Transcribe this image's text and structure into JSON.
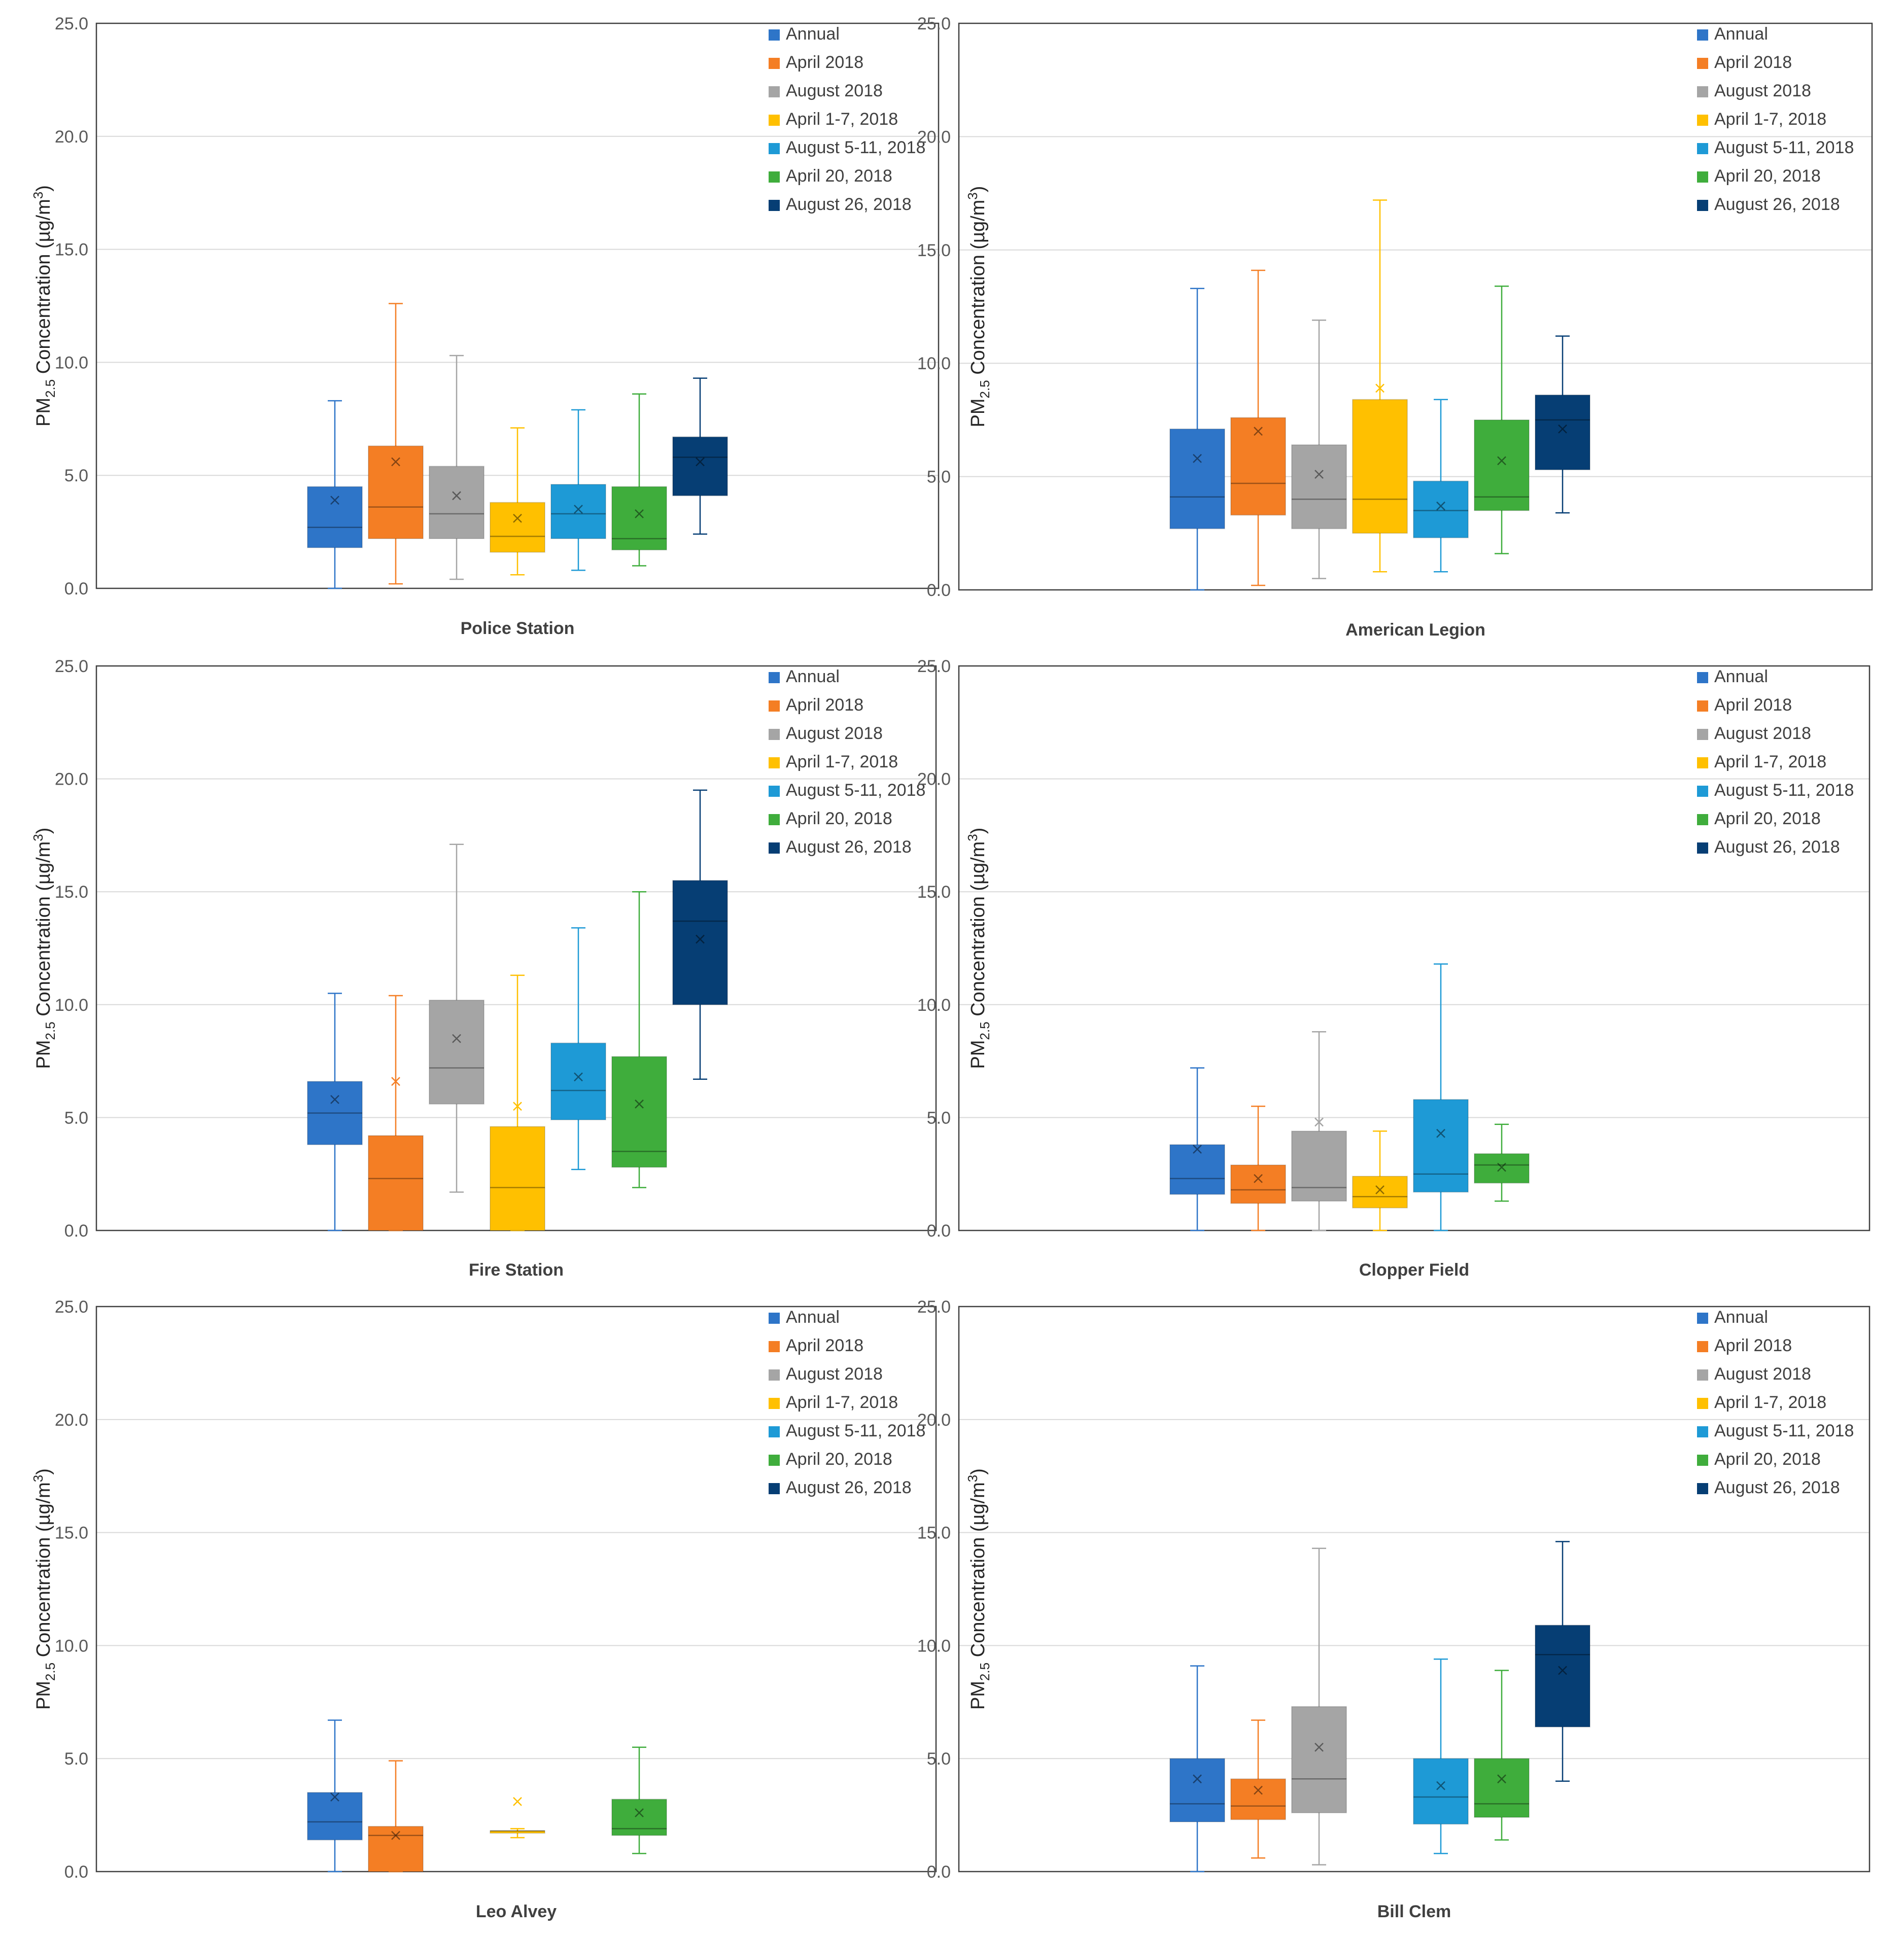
{
  "series_styles": [
    {
      "name": "Annual",
      "color": "#2E75C8"
    },
    {
      "name": "April 2018",
      "color": "#F47E24"
    },
    {
      "name": "August 2018",
      "color": "#A5A5A5"
    },
    {
      "name": "April 1-7, 2018",
      "color": "#FFC000"
    },
    {
      "name": "August 5-11, 2018",
      "color": "#1E9AD6"
    },
    {
      "name": "April 20, 2018",
      "color": "#3FAD3C"
    },
    {
      "name": "August 26, 2018",
      "color": "#063E74"
    }
  ],
  "chart_data": [
    {
      "type": "boxplot",
      "title": "Police Station",
      "ylabel": "PM2.5 Concentration (µg/m3)",
      "ylabel_parts": {
        "pre": "PM",
        "sub": "2.5",
        "mid": " Concentration (µg/m",
        "sup": "3",
        "post": ")"
      },
      "ylim": [
        0,
        25
      ],
      "yticks": [
        "0.0",
        "5.0",
        "10.0",
        "15.0",
        "20.0",
        "25.0"
      ],
      "legend": [
        "Annual",
        "April 2018",
        "August 2018",
        "April 1-7, 2018",
        "August 5-11, 2018",
        "April 20, 2018",
        "August 26, 2018"
      ],
      "series": [
        {
          "name": "Annual",
          "min": 0.0,
          "q1": 1.8,
          "median": 2.7,
          "q3": 4.5,
          "max": 8.3,
          "mean": 3.9
        },
        {
          "name": "April 2018",
          "min": 0.2,
          "q1": 2.2,
          "median": 3.6,
          "q3": 6.3,
          "max": 12.6,
          "mean": 5.6
        },
        {
          "name": "August 2018",
          "min": 0.4,
          "q1": 2.2,
          "median": 3.3,
          "q3": 5.4,
          "max": 10.3,
          "mean": 4.1
        },
        {
          "name": "April 1-7, 2018",
          "min": 0.6,
          "q1": 1.6,
          "median": 2.3,
          "q3": 3.8,
          "max": 7.1,
          "mean": 3.1
        },
        {
          "name": "August 5-11, 2018",
          "min": 0.8,
          "q1": 2.2,
          "median": 3.3,
          "q3": 4.6,
          "max": 7.9,
          "mean": 3.5
        },
        {
          "name": "April 20, 2018",
          "min": 1.0,
          "q1": 1.7,
          "median": 2.2,
          "q3": 4.5,
          "max": 8.6,
          "mean": 3.3
        },
        {
          "name": "August 26, 2018",
          "min": 2.4,
          "q1": 4.1,
          "median": 5.8,
          "q3": 6.7,
          "max": 9.3,
          "mean": 5.6
        }
      ]
    },
    {
      "type": "boxplot",
      "title": "American Legion",
      "ylabel": "PM2.5 Concentration (µg/m3)",
      "ylabel_parts": {
        "pre": "PM",
        "sub": "2.5",
        "mid": " Concentration (µg/m",
        "sup": "3",
        "post": ")"
      },
      "ylim": [
        0,
        25
      ],
      "yticks": [
        "0.0",
        "5.0",
        "10.0",
        "15.0",
        "20.0",
        "25.0"
      ],
      "legend": [
        "Annual",
        "April 2018",
        "August 2018",
        "April 1-7, 2018",
        "August 5-11, 2018",
        "April 20, 2018",
        "August 26, 2018"
      ],
      "series": [
        {
          "name": "Annual",
          "min": 0.0,
          "q1": 2.7,
          "median": 4.1,
          "q3": 7.1,
          "max": 13.3,
          "mean": 5.8
        },
        {
          "name": "April 2018",
          "min": 0.2,
          "q1": 3.3,
          "median": 4.7,
          "q3": 7.6,
          "max": 14.1,
          "mean": 7.0
        },
        {
          "name": "August 2018",
          "min": 0.5,
          "q1": 2.7,
          "median": 4.0,
          "q3": 6.4,
          "max": 11.9,
          "mean": 5.1
        },
        {
          "name": "April 1-7, 2018",
          "min": 0.8,
          "q1": 2.5,
          "median": 4.0,
          "q3": 8.4,
          "max": 17.2,
          "mean": 8.9
        },
        {
          "name": "August 5-11, 2018",
          "min": 0.8,
          "q1": 2.3,
          "median": 3.5,
          "q3": 4.8,
          "max": 8.4,
          "mean": 3.7
        },
        {
          "name": "April 20, 2018",
          "min": 1.6,
          "q1": 3.5,
          "median": 4.1,
          "q3": 7.5,
          "max": 13.4,
          "mean": 5.7
        },
        {
          "name": "August 26, 2018",
          "min": 3.4,
          "q1": 5.3,
          "median": 7.5,
          "q3": 8.6,
          "max": 11.2,
          "mean": 7.1
        }
      ]
    },
    {
      "type": "boxplot",
      "title": "Fire Station",
      "ylabel": "PM2.5 Concentration (µg/m3)",
      "ylabel_parts": {
        "pre": "PM",
        "sub": "2.5",
        "mid": " Concentration (µg/m",
        "sup": "3",
        "post": ")"
      },
      "ylim": [
        0,
        25
      ],
      "yticks": [
        "0.0",
        "5.0",
        "10.0",
        "15.0",
        "20.0",
        "25.0"
      ],
      "legend": [
        "Annual",
        "April 2018",
        "August 2018",
        "April 1-7, 2018",
        "August 5-11, 2018",
        "April 20, 2018",
        "August 26, 2018"
      ],
      "series": [
        {
          "name": "Annual",
          "min": 0.0,
          "q1": 3.8,
          "median": 5.2,
          "q3": 6.6,
          "max": 10.5,
          "mean": 5.8
        },
        {
          "name": "April 2018",
          "min": 0.0,
          "q1": 0.0,
          "median": 2.3,
          "q3": 4.2,
          "max": 10.4,
          "mean": 6.6
        },
        {
          "name": "August 2018",
          "min": 1.7,
          "q1": 5.6,
          "median": 7.2,
          "q3": 10.2,
          "max": 17.1,
          "mean": 8.5
        },
        {
          "name": "April 1-7, 2018",
          "min": 0.0,
          "q1": 0.0,
          "median": 1.9,
          "q3": 4.6,
          "max": 11.3,
          "mean": 5.5
        },
        {
          "name": "August 5-11, 2018",
          "min": 2.7,
          "q1": 4.9,
          "median": 6.2,
          "q3": 8.3,
          "max": 13.4,
          "mean": 6.8
        },
        {
          "name": "April 20, 2018",
          "min": 1.9,
          "q1": 2.8,
          "median": 3.5,
          "q3": 7.7,
          "max": 15.0,
          "mean": 5.6
        },
        {
          "name": "August 26, 2018",
          "min": 6.7,
          "q1": 10.0,
          "median": 13.7,
          "q3": 15.5,
          "max": 19.5,
          "mean": 12.9
        }
      ]
    },
    {
      "type": "boxplot",
      "title": "Clopper Field",
      "ylabel": "PM2.5 Concentration (µg/m3)",
      "ylabel_parts": {
        "pre": "PM",
        "sub": "2.5",
        "mid": " Concentration (µg/m",
        "sup": "3",
        "post": ")"
      },
      "ylim": [
        0,
        25
      ],
      "yticks": [
        "0.0",
        "5.0",
        "10.0",
        "15.0",
        "20.0",
        "25.0"
      ],
      "legend": [
        "Annual",
        "April 2018",
        "August 2018",
        "April 1-7, 2018",
        "August 5-11, 2018",
        "April 20, 2018",
        "August 26, 2018"
      ],
      "series": [
        {
          "name": "Annual",
          "min": 0.0,
          "q1": 1.6,
          "median": 2.3,
          "q3": 3.8,
          "max": 7.2,
          "mean": 3.6
        },
        {
          "name": "April 2018",
          "min": 0.0,
          "q1": 1.2,
          "median": 1.8,
          "q3": 2.9,
          "max": 5.5,
          "mean": 2.3
        },
        {
          "name": "August 2018",
          "min": 0.0,
          "q1": 1.3,
          "median": 1.9,
          "q3": 4.4,
          "max": 8.8,
          "mean": 4.8
        },
        {
          "name": "April 1-7, 2018",
          "min": 0.0,
          "q1": 1.0,
          "median": 1.5,
          "q3": 2.4,
          "max": 4.4,
          "mean": 1.8
        },
        {
          "name": "August 5-11, 2018",
          "min": 0.0,
          "q1": 1.7,
          "median": 2.5,
          "q3": 5.8,
          "max": 11.8,
          "mean": 4.3
        },
        {
          "name": "April 20, 2018",
          "min": 1.3,
          "q1": 2.1,
          "median": 2.9,
          "q3": 3.4,
          "max": 4.7,
          "mean": 2.8
        }
      ]
    },
    {
      "type": "boxplot",
      "title": "Leo Alvey",
      "ylabel": "PM2.5 Concentration (µg/m3)",
      "ylabel_parts": {
        "pre": "PM",
        "sub": "2.5",
        "mid": " Concentration (µg/m",
        "sup": "3",
        "post": ")"
      },
      "ylim": [
        0,
        25
      ],
      "yticks": [
        "0.0",
        "5.0",
        "10.0",
        "15.0",
        "20.0",
        "25.0"
      ],
      "legend": [
        "Annual",
        "April 2018",
        "August 2018",
        "April 1-7, 2018",
        "August 5-11, 2018",
        "April 20, 2018",
        "August 26, 2018"
      ],
      "series": [
        {
          "name": "Annual",
          "min": 0.0,
          "q1": 1.4,
          "median": 2.2,
          "q3": 3.5,
          "max": 6.7,
          "mean": 3.3
        },
        {
          "name": "April 2018",
          "min": 0.0,
          "q1": 0.0,
          "median": 1.6,
          "q3": 2.0,
          "max": 4.9,
          "mean": 1.6
        },
        {
          "name": "April 1-7, 2018",
          "min": 1.5,
          "q1": 1.7,
          "median": 1.8,
          "q3": 1.8,
          "max": 1.9,
          "mean": 3.1
        },
        {
          "name": "April 20, 2018",
          "min": 0.8,
          "q1": 1.6,
          "median": 1.9,
          "q3": 3.2,
          "max": 5.5,
          "mean": 2.6
        }
      ]
    },
    {
      "type": "boxplot",
      "title": "Bill Clem",
      "ylabel": "PM2.5 Concentration (µg/m3)",
      "ylabel_parts": {
        "pre": "PM",
        "sub": "2.5",
        "mid": " Concentration (µg/m",
        "sup": "3",
        "post": ")"
      },
      "ylim": [
        0,
        25
      ],
      "yticks": [
        "0.0",
        "5.0",
        "10.0",
        "15.0",
        "20.0",
        "25.0"
      ],
      "legend": [
        "Annual",
        "April 2018",
        "August 2018",
        "April 1-7, 2018",
        "August 5-11, 2018",
        "April 20, 2018",
        "August 26, 2018"
      ],
      "series": [
        {
          "name": "Annual",
          "min": 0.0,
          "q1": 2.2,
          "median": 3.0,
          "q3": 5.0,
          "max": 9.1,
          "mean": 4.1
        },
        {
          "name": "April 2018",
          "min": 0.6,
          "q1": 2.3,
          "median": 2.9,
          "q3": 4.1,
          "max": 6.7,
          "mean": 3.6
        },
        {
          "name": "August 2018",
          "min": 0.3,
          "q1": 2.6,
          "median": 4.1,
          "q3": 7.3,
          "max": 14.3,
          "mean": 5.5
        },
        {
          "name": "August 5-11, 2018",
          "min": 0.8,
          "q1": 2.1,
          "median": 3.3,
          "q3": 5.0,
          "max": 9.4,
          "mean": 3.8
        },
        {
          "name": "April 20, 2018",
          "min": 1.4,
          "q1": 2.4,
          "median": 3.0,
          "q3": 5.0,
          "max": 8.9,
          "mean": 4.1
        },
        {
          "name": "August 26, 2018",
          "min": 4.0,
          "q1": 6.4,
          "median": 9.6,
          "q3": 10.9,
          "max": 14.6,
          "mean": 8.9
        }
      ]
    }
  ]
}
